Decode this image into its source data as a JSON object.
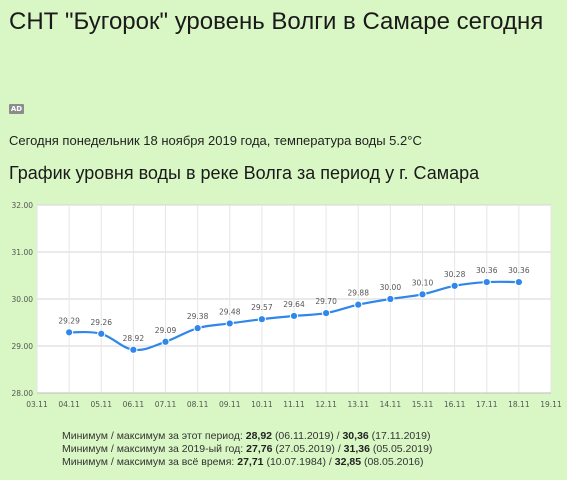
{
  "page": {
    "title": "СНТ \"Бугорок\" уровень Волги в Самаре сегодня",
    "ad_icon": "ad-badge-icon",
    "ad_label": "AD",
    "date_line": "Сегодня понедельник 18 ноября 2019 года, температура воды 5.2°C",
    "chart_heading": "График уровня воды в реке Волга за период у г. Самара"
  },
  "chart_data": {
    "type": "line",
    "title": "",
    "xlabel": "",
    "ylabel": "",
    "x_ticks": [
      "03.11",
      "04.11",
      "05.11",
      "06.11",
      "07.11",
      "08.11",
      "09.11",
      "10.11",
      "11.11",
      "12.11",
      "13.11",
      "14.11",
      "15.11",
      "16.11",
      "17.11",
      "18.11",
      "19.11"
    ],
    "y_ticks": [
      "28.00",
      "29.00",
      "30.00",
      "31.00",
      "32.00"
    ],
    "ylim": [
      28,
      32
    ],
    "grid": true,
    "series": [
      {
        "name": "",
        "color": "#2f86eb",
        "x": [
          "04.11",
          "05.11",
          "06.11",
          "07.11",
          "08.11",
          "09.11",
          "10.11",
          "11.11",
          "12.11",
          "13.11",
          "14.11",
          "15.11",
          "16.11",
          "17.11",
          "18.11"
        ],
        "values": [
          29.29,
          29.26,
          28.92,
          29.09,
          29.38,
          29.48,
          29.57,
          29.64,
          29.7,
          29.88,
          30.0,
          30.1,
          30.28,
          30.36,
          30.36
        ],
        "labels": [
          "29.29",
          "29.26",
          "28.92",
          "29.09",
          "29.38",
          "29.48",
          "29.57",
          "29.64",
          "29.70",
          "29.88",
          "30.00",
          "30.10",
          "30.28",
          "30.36",
          "30.36"
        ]
      }
    ]
  },
  "stats": [
    {
      "label": "Минимум / максимум за этот период:",
      "min": "28,92",
      "min_date": "(06.11.2019)",
      "sep": "/",
      "max": "30,36",
      "max_date": "(17.11.2019)"
    },
    {
      "label": "Минимум / максимум за 2019-ый год:",
      "min": "27,76",
      "min_date": "(27.05.2019)",
      "sep": "/",
      "max": "31,36",
      "max_date": "(05.05.2019)"
    },
    {
      "label": "Минимум / максимум  за  всё  время:",
      "min": "27,71",
      "min_date": "(10.07.1984)",
      "sep": "/",
      "max": "32,85",
      "max_date": "(08.05.2016)"
    }
  ]
}
